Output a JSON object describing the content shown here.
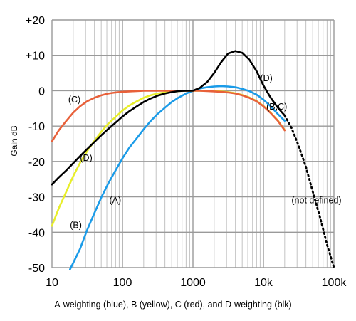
{
  "chart_data": {
    "type": "line",
    "xscale": "log",
    "xlim": [
      10,
      100000
    ],
    "ylim": [
      -50,
      20
    ],
    "ylabel": "Gain dB",
    "xlabel": "A-weighting (blue), B (yellow), C (red), and D-weighting (blk)",
    "grid": true,
    "x_ticks": [
      {
        "value": 10,
        "label": "10"
      },
      {
        "value": 100,
        "label": "100"
      },
      {
        "value": 1000,
        "label": "1000"
      },
      {
        "value": 10000,
        "label": "10k"
      },
      {
        "value": 100000,
        "label": "100k"
      }
    ],
    "y_ticks": [
      {
        "value": 20,
        "label": "+20"
      },
      {
        "value": 10,
        "label": "+10"
      },
      {
        "value": 0,
        "label": "0"
      },
      {
        "value": -10,
        "label": "-10"
      },
      {
        "value": -20,
        "label": "-20"
      },
      {
        "value": -30,
        "label": "-30"
      },
      {
        "value": -40,
        "label": "-40"
      },
      {
        "value": -50,
        "label": "-50"
      }
    ],
    "series": [
      {
        "name": "A",
        "color": "#1a9be8",
        "x": [
          18,
          20,
          25,
          31.5,
          40,
          50,
          63,
          80,
          100,
          125,
          160,
          200,
          250,
          315,
          400,
          500,
          630,
          800,
          1000,
          1250,
          1600,
          2000,
          2500,
          3150,
          4000,
          5000,
          6300,
          8000,
          10000,
          12500,
          16000,
          20000
        ],
        "y": [
          -50.5,
          -48.7,
          -44.7,
          -39.4,
          -34.6,
          -30.2,
          -26.2,
          -22.5,
          -19.1,
          -16.1,
          -13.4,
          -10.9,
          -8.6,
          -6.6,
          -4.8,
          -3.2,
          -1.9,
          -0.8,
          0.0,
          0.6,
          1.0,
          1.2,
          1.3,
          1.2,
          1.0,
          0.5,
          -0.1,
          -1.1,
          -2.5,
          -4.3,
          -6.6,
          -8.5
        ]
      },
      {
        "name": "B",
        "color": "#e8ee2a",
        "x": [
          10,
          12.5,
          16,
          20,
          25,
          31.5,
          40,
          50,
          63,
          80,
          100,
          125,
          160,
          200,
          250,
          315,
          400,
          500,
          630,
          800,
          1000,
          1250,
          1600,
          2000,
          2500,
          3150,
          4000,
          5000,
          6300,
          8000,
          10000,
          12500,
          16000,
          20000
        ],
        "y": [
          -38.2,
          -33.2,
          -28.5,
          -24.2,
          -20.4,
          -17.1,
          -14.2,
          -11.6,
          -9.3,
          -7.4,
          -5.6,
          -4.2,
          -3.0,
          -2.0,
          -1.3,
          -0.8,
          -0.5,
          -0.3,
          -0.1,
          0.0,
          0.0,
          0.0,
          0.0,
          -0.1,
          -0.2,
          -0.4,
          -0.7,
          -1.2,
          -1.9,
          -2.9,
          -4.3,
          -6.1,
          -8.4,
          -11.1
        ]
      },
      {
        "name": "C",
        "color": "#e8603a",
        "x": [
          10,
          12.5,
          16,
          20,
          25,
          31.5,
          40,
          50,
          63,
          80,
          100,
          125,
          160,
          200,
          250,
          315,
          400,
          500,
          630,
          800,
          1000,
          1250,
          1600,
          2000,
          2500,
          3150,
          4000,
          5000,
          6300,
          8000,
          10000,
          12500,
          16000,
          20000
        ],
        "y": [
          -14.3,
          -11.2,
          -8.5,
          -6.2,
          -4.4,
          -3.0,
          -2.0,
          -1.3,
          -0.8,
          -0.5,
          -0.3,
          -0.2,
          -0.1,
          0.0,
          0.0,
          0.0,
          0.0,
          0.0,
          0.0,
          0.0,
          0.0,
          0.0,
          -0.1,
          -0.2,
          -0.3,
          -0.5,
          -0.8,
          -1.3,
          -2.0,
          -3.0,
          -4.4,
          -6.2,
          -8.5,
          -11.2
        ]
      },
      {
        "name": "D",
        "color": "#000000",
        "x": [
          10,
          12.5,
          16,
          20,
          25,
          31.5,
          40,
          50,
          63,
          80,
          100,
          125,
          160,
          200,
          250,
          315,
          400,
          500,
          630,
          800,
          1000,
          1250,
          1600,
          2000,
          2500,
          3150,
          4000,
          5000,
          6300,
          8000,
          10000,
          12500,
          16000,
          20000
        ],
        "y": [
          -26.5,
          -24.5,
          -22.5,
          -20.5,
          -18.5,
          -16.5,
          -14.5,
          -12.6,
          -10.8,
          -9.0,
          -7.3,
          -5.8,
          -4.4,
          -3.2,
          -2.2,
          -1.4,
          -0.8,
          -0.4,
          -0.1,
          0.0,
          0.0,
          0.8,
          2.5,
          5.0,
          8.0,
          10.5,
          11.2,
          10.7,
          8.8,
          5.5,
          1.5,
          -1.8,
          -4.8,
          -7.0
        ]
      },
      {
        "name": "not defined",
        "color": "#000000",
        "dashed": true,
        "x": [
          20000,
          25000,
          31500,
          40000,
          50000,
          63000,
          80000,
          100000
        ],
        "y": [
          -7.0,
          -10.5,
          -15.5,
          -21.5,
          -28.5,
          -35.5,
          -43.5,
          -50.0
        ]
      }
    ],
    "annotations": [
      {
        "text": "(A)",
        "x": 65,
        "y": -31
      },
      {
        "text": "(B)",
        "x": 18,
        "y": -38
      },
      {
        "text": "(C)",
        "x": 17,
        "y": -2.5
      },
      {
        "text": "(D)",
        "x": 25,
        "y": -19
      },
      {
        "text": "(D)",
        "x": 9000,
        "y": 3.5
      },
      {
        "text": "(B,C)",
        "x": 11000,
        "y": -4.5
      },
      {
        "text": "(not defined)",
        "x": 25000,
        "y": -31
      }
    ]
  }
}
